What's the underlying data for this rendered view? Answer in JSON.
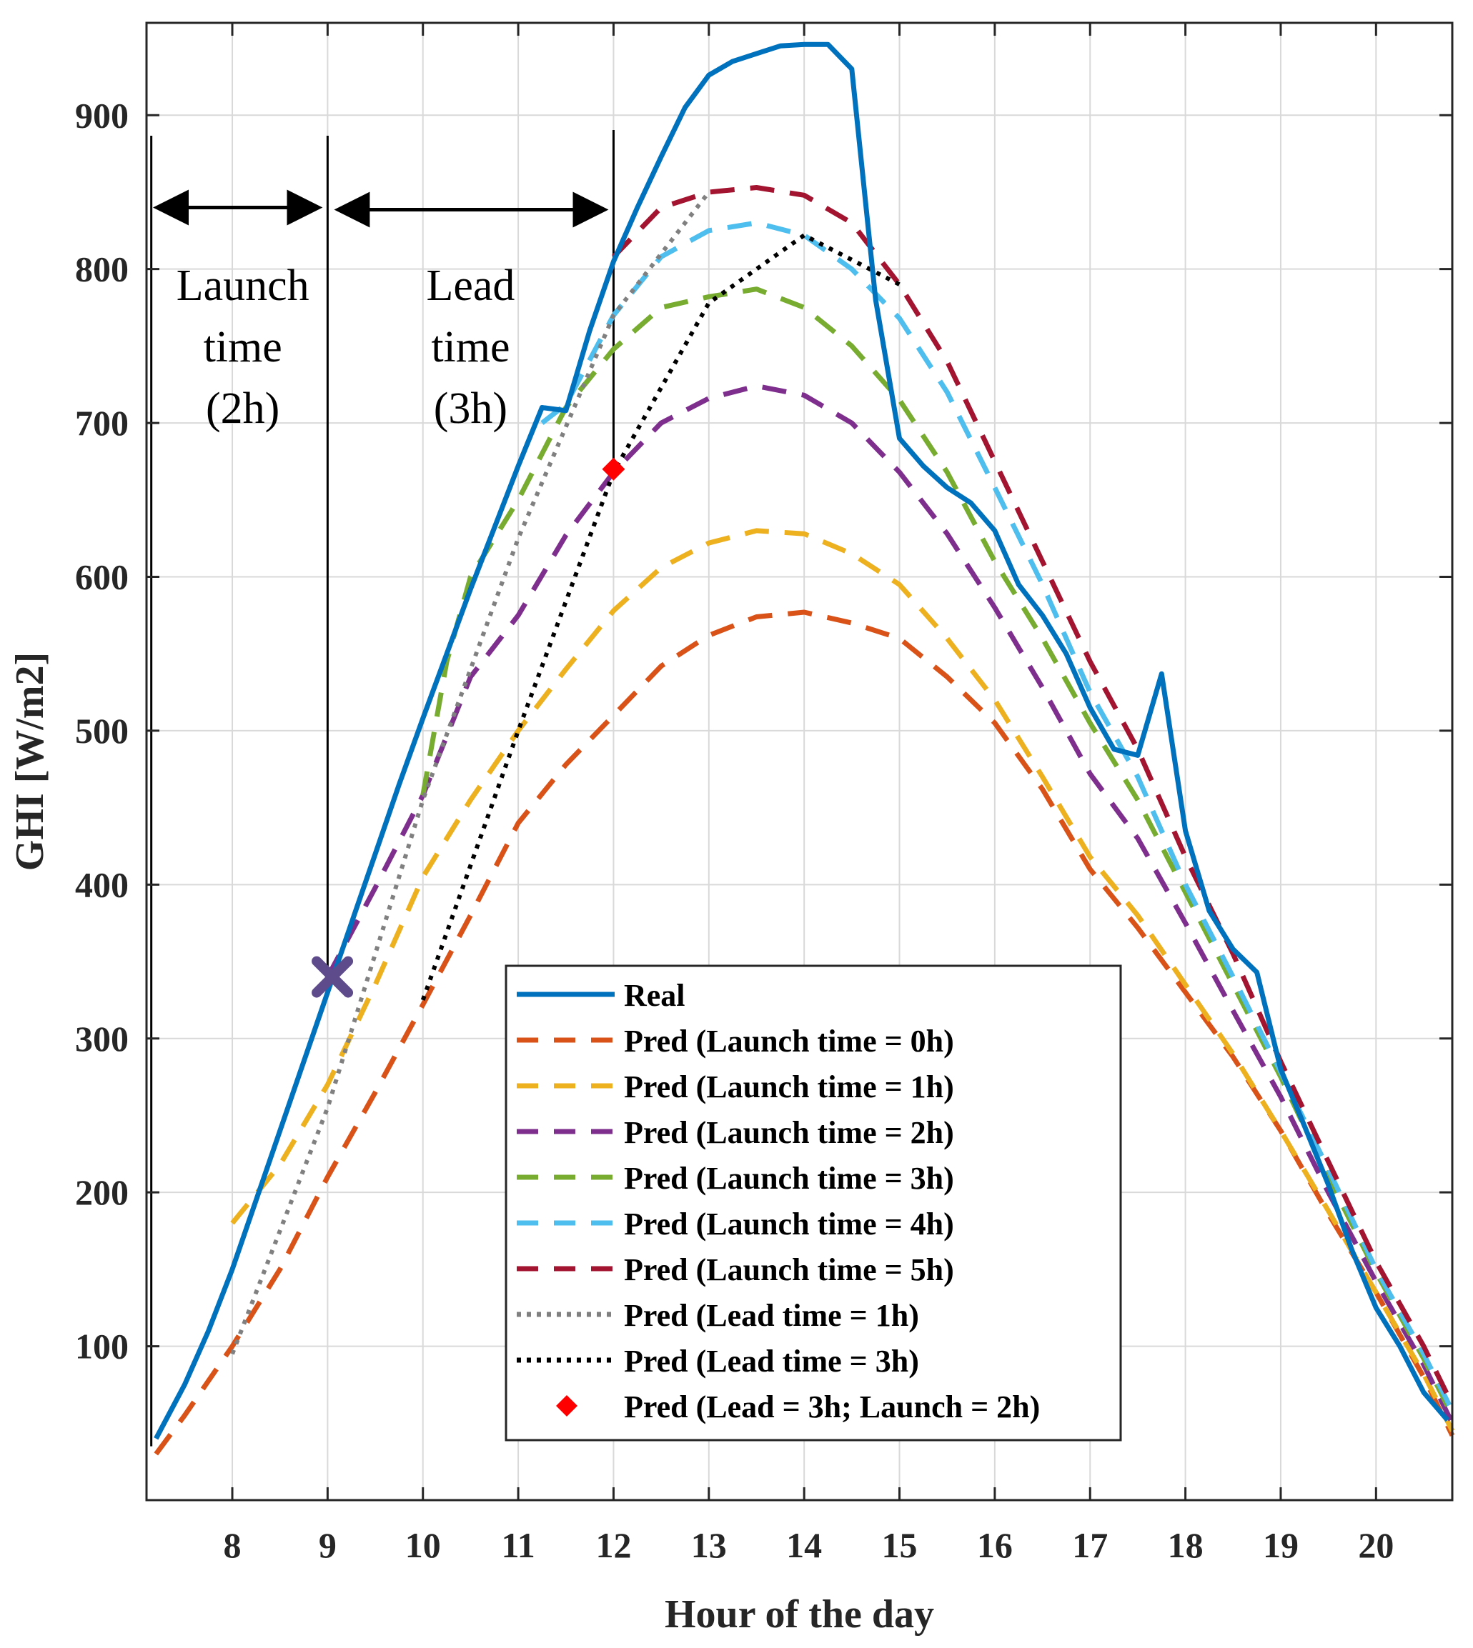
{
  "chart_data": {
    "type": "line",
    "xlabel": "Hour of the day",
    "ylabel": "GHI [W/m2]",
    "xlim": [
      7.1,
      20.8
    ],
    "ylim": [
      0,
      960
    ],
    "xticks": [
      8,
      9,
      10,
      11,
      12,
      13,
      14,
      15,
      16,
      17,
      18,
      19,
      20
    ],
    "yticks": [
      100,
      200,
      300,
      400,
      500,
      600,
      700,
      800,
      900
    ],
    "grid": true,
    "legend_position": "bottom-center",
    "series": [
      {
        "name": "Real",
        "color": "#0072BD",
        "style": "solid",
        "points": [
          [
            7.2,
            40
          ],
          [
            7.5,
            75
          ],
          [
            7.75,
            110
          ],
          [
            8,
            150
          ],
          [
            8.25,
            195
          ],
          [
            8.5,
            240
          ],
          [
            8.75,
            285
          ],
          [
            9,
            330
          ],
          [
            9.25,
            375
          ],
          [
            9.5,
            420
          ],
          [
            9.75,
            465
          ],
          [
            10,
            508
          ],
          [
            10.25,
            550
          ],
          [
            10.5,
            592
          ],
          [
            10.75,
            632
          ],
          [
            11,
            672
          ],
          [
            11.25,
            710
          ],
          [
            11.5,
            708
          ],
          [
            11.75,
            760
          ],
          [
            12,
            805
          ],
          [
            12.25,
            840
          ],
          [
            12.5,
            873
          ],
          [
            12.75,
            905
          ],
          [
            13,
            926
          ],
          [
            13.25,
            935
          ],
          [
            13.5,
            940
          ],
          [
            13.75,
            945
          ],
          [
            14,
            946
          ],
          [
            14.25,
            946
          ],
          [
            14.5,
            930
          ],
          [
            14.75,
            780
          ],
          [
            15,
            690
          ],
          [
            15.25,
            672
          ],
          [
            15.5,
            658
          ],
          [
            15.75,
            648
          ],
          [
            16,
            630
          ],
          [
            16.25,
            595
          ],
          [
            16.5,
            575
          ],
          [
            16.75,
            550
          ],
          [
            17,
            515
          ],
          [
            17.25,
            488
          ],
          [
            17.5,
            484
          ],
          [
            17.75,
            537
          ],
          [
            18,
            435
          ],
          [
            18.25,
            383
          ],
          [
            18.5,
            358
          ],
          [
            18.75,
            343
          ],
          [
            19,
            280
          ],
          [
            19.25,
            243
          ],
          [
            19.5,
            205
          ],
          [
            19.75,
            162
          ],
          [
            20,
            125
          ],
          [
            20.25,
            100
          ],
          [
            20.5,
            70
          ],
          [
            20.75,
            52
          ]
        ]
      },
      {
        "name": "Pred (Launch time = 0h)",
        "color": "#D95319",
        "style": "dashed",
        "points": [
          [
            7.2,
            30
          ],
          [
            7.5,
            55
          ],
          [
            8,
            100
          ],
          [
            8.5,
            150
          ],
          [
            9,
            210
          ],
          [
            9.5,
            265
          ],
          [
            10,
            322
          ],
          [
            10.5,
            380
          ],
          [
            11,
            440
          ],
          [
            11.5,
            478
          ],
          [
            12,
            510
          ],
          [
            12.5,
            542
          ],
          [
            13,
            562
          ],
          [
            13.5,
            574
          ],
          [
            14,
            577
          ],
          [
            14.5,
            570
          ],
          [
            15,
            560
          ],
          [
            15.5,
            535
          ],
          [
            16,
            505
          ],
          [
            16.5,
            462
          ],
          [
            17,
            410
          ],
          [
            17.5,
            372
          ],
          [
            18,
            330
          ],
          [
            18.5,
            288
          ],
          [
            19,
            240
          ],
          [
            19.5,
            186
          ],
          [
            20,
            135
          ],
          [
            20.5,
            80
          ],
          [
            20.8,
            42
          ]
        ]
      },
      {
        "name": "Pred (Launch time = 1h)",
        "color": "#EDB120",
        "style": "dashed",
        "points": [
          [
            8,
            180
          ],
          [
            8.5,
            218
          ],
          [
            9,
            270
          ],
          [
            9.5,
            335
          ],
          [
            10,
            405
          ],
          [
            10.5,
            455
          ],
          [
            11,
            500
          ],
          [
            11.5,
            540
          ],
          [
            12,
            578
          ],
          [
            12.5,
            606
          ],
          [
            13,
            622
          ],
          [
            13.5,
            630
          ],
          [
            14,
            628
          ],
          [
            14.5,
            615
          ],
          [
            15,
            595
          ],
          [
            15.5,
            560
          ],
          [
            16,
            520
          ],
          [
            16.5,
            470
          ],
          [
            17,
            418
          ],
          [
            17.5,
            380
          ],
          [
            18,
            335
          ],
          [
            18.5,
            290
          ],
          [
            19,
            240
          ],
          [
            19.5,
            188
          ],
          [
            20,
            135
          ],
          [
            20.5,
            82
          ],
          [
            20.8,
            45
          ]
        ]
      },
      {
        "name": "Pred (Launch time = 2h)",
        "color": "#7E2F8E",
        "style": "dashed",
        "points": [
          [
            9,
            340
          ],
          [
            9.5,
            398
          ],
          [
            10,
            458
          ],
          [
            10.5,
            535
          ],
          [
            11,
            575
          ],
          [
            11.5,
            627
          ],
          [
            12,
            668
          ],
          [
            12.5,
            700
          ],
          [
            13,
            716
          ],
          [
            13.5,
            724
          ],
          [
            14,
            718
          ],
          [
            14.5,
            700
          ],
          [
            15,
            668
          ],
          [
            15.5,
            628
          ],
          [
            16,
            580
          ],
          [
            16.5,
            528
          ],
          [
            17,
            472
          ],
          [
            17.5,
            430
          ],
          [
            18,
            375
          ],
          [
            18.5,
            318
          ],
          [
            19,
            262
          ],
          [
            19.5,
            200
          ],
          [
            20,
            142
          ],
          [
            20.5,
            88
          ],
          [
            20.8,
            50
          ]
        ]
      },
      {
        "name": "Pred (Launch time = 3h)",
        "color": "#77AC30",
        "style": "dashed",
        "points": [
          [
            10,
            458
          ],
          [
            10.25,
            545
          ],
          [
            10.5,
            600
          ],
          [
            11,
            650
          ],
          [
            11.5,
            710
          ],
          [
            12,
            748
          ],
          [
            12.5,
            775
          ],
          [
            13,
            782
          ],
          [
            13.5,
            787
          ],
          [
            14,
            775
          ],
          [
            14.5,
            750
          ],
          [
            15,
            715
          ],
          [
            15.5,
            668
          ],
          [
            16,
            610
          ],
          [
            16.5,
            560
          ],
          [
            17,
            505
          ],
          [
            17.5,
            455
          ],
          [
            18,
            395
          ],
          [
            18.5,
            335
          ],
          [
            19,
            275
          ],
          [
            19.5,
            210
          ],
          [
            20,
            148
          ],
          [
            20.5,
            92
          ],
          [
            20.8,
            55
          ]
        ]
      },
      {
        "name": "Pred (Launch time = 4h)",
        "color": "#4DBEEE",
        "style": "dashed",
        "points": [
          [
            11.25,
            700
          ],
          [
            11.5,
            712
          ],
          [
            12,
            770
          ],
          [
            12.5,
            808
          ],
          [
            13,
            825
          ],
          [
            13.5,
            830
          ],
          [
            14,
            822
          ],
          [
            14.5,
            800
          ],
          [
            15,
            768
          ],
          [
            15.5,
            720
          ],
          [
            16,
            658
          ],
          [
            16.5,
            595
          ],
          [
            17,
            525
          ],
          [
            17.5,
            470
          ],
          [
            18,
            400
          ],
          [
            18.5,
            340
          ],
          [
            19,
            278
          ],
          [
            19.5,
            215
          ],
          [
            20,
            150
          ],
          [
            20.5,
            95
          ],
          [
            20.8,
            58
          ]
        ]
      },
      {
        "name": "Pred (Launch time = 5h)",
        "color": "#A2142F",
        "style": "dashed",
        "points": [
          [
            12,
            808
          ],
          [
            12.5,
            840
          ],
          [
            13,
            850
          ],
          [
            13.5,
            853
          ],
          [
            14,
            848
          ],
          [
            14.5,
            830
          ],
          [
            15,
            790
          ],
          [
            15.5,
            740
          ],
          [
            16,
            675
          ],
          [
            16.5,
            610
          ],
          [
            17,
            545
          ],
          [
            17.5,
            488
          ],
          [
            18,
            418
          ],
          [
            18.5,
            355
          ],
          [
            19,
            285
          ],
          [
            19.5,
            220
          ],
          [
            20,
            155
          ],
          [
            20.5,
            100
          ],
          [
            20.8,
            62
          ]
        ]
      },
      {
        "name": "Pred (Lead time = 1h)",
        "color": "#808080",
        "style": "dotted",
        "points": [
          [
            8,
            95
          ],
          [
            9,
            255
          ],
          [
            10,
            455
          ],
          [
            11,
            625
          ],
          [
            12,
            770
          ],
          [
            13,
            850
          ]
        ]
      },
      {
        "name": "Pred (Lead time = 3h)",
        "color": "#000000",
        "style": "dotted",
        "points": [
          [
            10,
            325
          ],
          [
            11,
            500
          ],
          [
            12,
            668
          ],
          [
            13,
            778
          ],
          [
            14,
            822
          ],
          [
            15,
            790
          ]
        ]
      },
      {
        "name": "Pred (Lead = 3h; Launch = 2h)",
        "color": "#FF0000",
        "style": "marker-diamond",
        "points": [
          [
            12,
            670
          ]
        ]
      }
    ],
    "markers": [
      {
        "name": "launch-point",
        "x": 9.05,
        "y": 340,
        "symbol": "x",
        "color": "#5E4B8B"
      }
    ],
    "annotations": [
      {
        "text_lines": [
          "Launch",
          "time",
          "(2h)"
        ],
        "x_from": 7.1,
        "x_to": 9
      },
      {
        "text_lines": [
          "Lead",
          "time",
          "(3h)"
        ],
        "x_from": 9,
        "x_to": 12
      }
    ],
    "vertical_lines": [
      7.15,
      9,
      12
    ],
    "arrow_y": 840
  }
}
